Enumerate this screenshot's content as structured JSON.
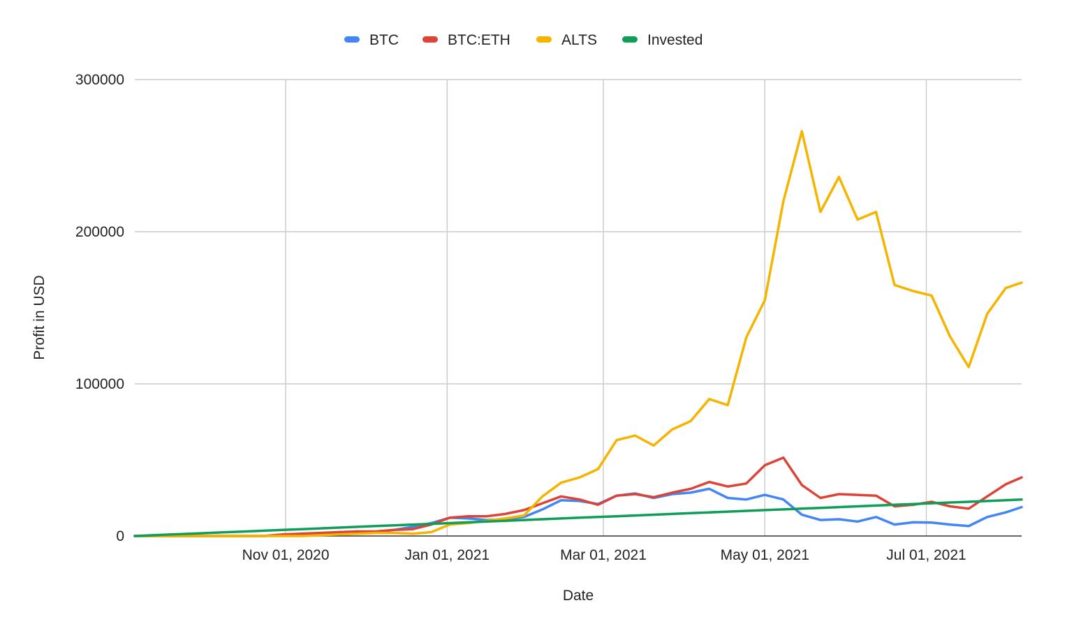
{
  "chart_data": {
    "type": "line",
    "title": "",
    "xlabel": "Date",
    "ylabel": "Profit in USD",
    "x_tick_labels": [
      "Nov 01, 2020",
      "Jan 01, 2021",
      "Mar 01, 2021",
      "May 01, 2021",
      "Jul 01, 2021"
    ],
    "x_ticks": [
      "2020-11-01",
      "2021-01-01",
      "2021-03-01",
      "2021-05-01",
      "2021-07-01"
    ],
    "xlim": [
      "2020-09-05",
      "2021-08-06"
    ],
    "y_tick_labels": [
      "0",
      "100000",
      "200000",
      "300000"
    ],
    "ylim": [
      0,
      300000
    ],
    "grid": true,
    "legend_position": "top",
    "dates": [
      "2020-09-05",
      "2020-09-12",
      "2020-09-19",
      "2020-09-26",
      "2020-10-03",
      "2020-10-10",
      "2020-10-17",
      "2020-10-24",
      "2020-10-31",
      "2020-11-07",
      "2020-11-14",
      "2020-11-21",
      "2020-11-28",
      "2020-12-05",
      "2020-12-12",
      "2020-12-19",
      "2020-12-26",
      "2021-01-02",
      "2021-01-09",
      "2021-01-16",
      "2021-01-23",
      "2021-01-30",
      "2021-02-06",
      "2021-02-13",
      "2021-02-20",
      "2021-02-27",
      "2021-03-06",
      "2021-03-13",
      "2021-03-20",
      "2021-03-27",
      "2021-04-03",
      "2021-04-10",
      "2021-04-17",
      "2021-04-24",
      "2021-05-01",
      "2021-05-08",
      "2021-05-15",
      "2021-05-22",
      "2021-05-29",
      "2021-06-05",
      "2021-06-12",
      "2021-06-19",
      "2021-06-26",
      "2021-07-03",
      "2021-07-10",
      "2021-07-17",
      "2021-07-24",
      "2021-07-31",
      "2021-08-06"
    ],
    "series": [
      {
        "name": "BTC",
        "color": "#4285f4",
        "values": [
          0,
          0,
          0,
          0,
          0,
          0,
          0,
          0,
          500,
          1000,
          1500,
          2500,
          3000,
          2500,
          4000,
          6000,
          8500,
          12000,
          11500,
          10500,
          11000,
          12500,
          17500,
          23500,
          23000,
          21000,
          26500,
          28000,
          25000,
          27500,
          28500,
          31000,
          25000,
          24000,
          27000,
          24000,
          14000,
          10500,
          11000,
          9500,
          12500,
          7500,
          9000,
          8800,
          7500,
          6500,
          12500,
          15500,
          19000
        ]
      },
      {
        "name": "BTC:ETH",
        "color": "#db4437",
        "values": [
          0,
          0,
          0,
          0,
          0,
          0,
          0,
          0,
          1000,
          1500,
          2000,
          2500,
          3000,
          3000,
          4000,
          4500,
          7500,
          12000,
          13000,
          13000,
          14500,
          17000,
          21500,
          26000,
          24000,
          20500,
          26500,
          27500,
          25500,
          28500,
          31000,
          35500,
          32500,
          34500,
          46500,
          51500,
          33500,
          25000,
          27500,
          27000,
          26500,
          19500,
          20500,
          22500,
          19500,
          18000,
          26000,
          34000,
          38500
        ]
      },
      {
        "name": "ALTS",
        "color": "#f4b400",
        "values": [
          0,
          0,
          0,
          0,
          0,
          0,
          0,
          0,
          0,
          0,
          500,
          1000,
          1500,
          2000,
          2000,
          1500,
          2500,
          7500,
          8500,
          10000,
          11500,
          13500,
          26000,
          35000,
          38500,
          44000,
          63000,
          66000,
          59500,
          70000,
          75500,
          90000,
          86000,
          130500,
          155000,
          220000,
          266000,
          213000,
          236000,
          208000,
          213000,
          165000,
          161000,
          158000,
          131000,
          111000,
          146000,
          163000,
          166500
        ]
      },
      {
        "name": "Invested",
        "color": "#0f9d58",
        "values": [
          0,
          500,
          1000,
          1500,
          2000,
          2500,
          3000,
          3500,
          4000,
          4500,
          5000,
          5500,
          6000,
          6500,
          7000,
          7500,
          8000,
          8500,
          9000,
          9500,
          10000,
          10500,
          11000,
          11500,
          12000,
          12500,
          13000,
          13500,
          14000,
          14500,
          15000,
          15500,
          16000,
          16500,
          17000,
          17500,
          18000,
          18500,
          19000,
          19500,
          20000,
          20500,
          21000,
          21500,
          22000,
          22500,
          23000,
          23500,
          24000
        ]
      }
    ]
  }
}
